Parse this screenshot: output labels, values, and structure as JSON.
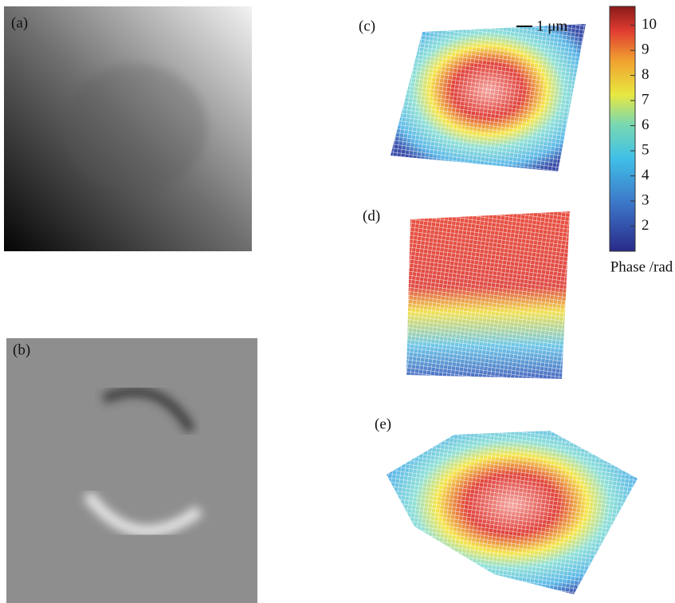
{
  "panels": {
    "a": "(a)",
    "b": "(b)",
    "c": "(c)",
    "d": "(d)",
    "e": "(e)"
  },
  "scale_bar": {
    "label": "1 μm"
  },
  "colorbar": {
    "label": "Phase /rad",
    "lim": [
      1,
      10.75
    ],
    "ticks": [
      2,
      3,
      4,
      5,
      6,
      7,
      8,
      9,
      10
    ]
  }
}
